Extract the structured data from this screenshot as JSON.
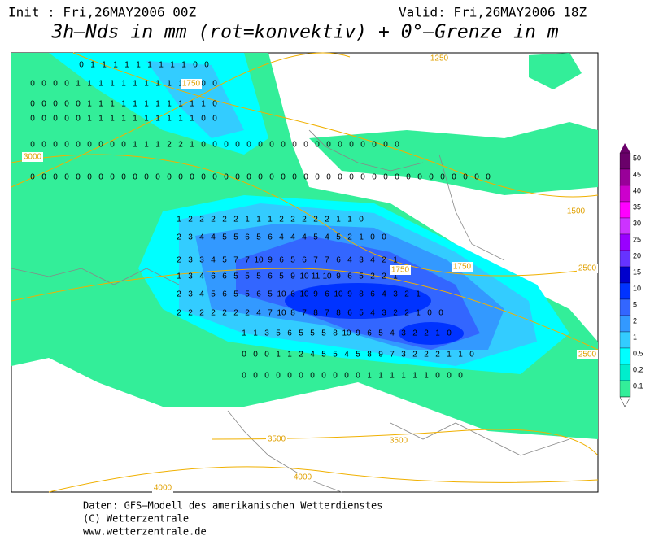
{
  "header": {
    "init": "Init : Fri,26MAY2006 00Z",
    "valid": "Valid: Fri,26MAY2006 18Z",
    "title": "3h–Nds in mm (rot=konvektiv) + 0°–Grenze in m"
  },
  "legend": {
    "labels": [
      "50",
      "45",
      "40",
      "35",
      "30",
      "25",
      "20",
      "15",
      "10",
      "5",
      "2",
      "1",
      "0.5",
      "0.2",
      "0.1"
    ],
    "colors": [
      "#6a006a",
      "#990099",
      "#cc00cc",
      "#ff00ff",
      "#cc33ff",
      "#9900ff",
      "#6633ff",
      "#0000cc",
      "#0033ff",
      "#3366ff",
      "#3399ff",
      "#33ccff",
      "#00ffff",
      "#00eecc",
      "#33ee99"
    ]
  },
  "contour_labels": [
    "1250",
    "1750",
    "3000",
    "1500",
    "1750",
    "2500",
    "1750",
    "2500",
    "3500",
    "3500",
    "4000",
    "4000"
  ],
  "grid_rows": [
    [
      0,
      1,
      1,
      1,
      1,
      1,
      1,
      1,
      1,
      1,
      0,
      0
    ],
    [
      0,
      0,
      0,
      0,
      1,
      1,
      1,
      1,
      1,
      1,
      1,
      1,
      1,
      1,
      1,
      0,
      0
    ],
    [
      0,
      0,
      0,
      0,
      0,
      1,
      1,
      1,
      1,
      1,
      1,
      1,
      1,
      1,
      1,
      1,
      0
    ],
    [
      0,
      0,
      0,
      0,
      0,
      1,
      1,
      1,
      1,
      1,
      1,
      1,
      1,
      1,
      1,
      0,
      0
    ],
    [
      0,
      0,
      0,
      0,
      0,
      0,
      0,
      0,
      0,
      1,
      1,
      1,
      2,
      2,
      1,
      0,
      0,
      0,
      0,
      0,
      0,
      0,
      0,
      0,
      0,
      0,
      0,
      0,
      0,
      0,
      0,
      0,
      0
    ],
    [
      0,
      0,
      0,
      0,
      0,
      0,
      0,
      0,
      0,
      0,
      0,
      0,
      0,
      0,
      0,
      0,
      0,
      0,
      0,
      0,
      0,
      0,
      0,
      0,
      0,
      0,
      0,
      0,
      0,
      0,
      0,
      0,
      0,
      0,
      0,
      0,
      0,
      0,
      0,
      0,
      0
    ],
    [
      1,
      2,
      2,
      2,
      2,
      2,
      1,
      1,
      1,
      2,
      2,
      2,
      2,
      2,
      1,
      1,
      0
    ],
    [
      2,
      3,
      4,
      4,
      5,
      5,
      6,
      5,
      6,
      4,
      4,
      4,
      5,
      4,
      5,
      2,
      1,
      0,
      0
    ],
    [
      2,
      3,
      3,
      4,
      5,
      7,
      7,
      10,
      9,
      6,
      5,
      6,
      7,
      7,
      6,
      4,
      3,
      4,
      2,
      1
    ],
    [
      1,
      3,
      4,
      6,
      6,
      5,
      5,
      5,
      6,
      5,
      9,
      10,
      11,
      10,
      9,
      6,
      5,
      2,
      2,
      1
    ],
    [
      2,
      3,
      4,
      5,
      6,
      5,
      5,
      6,
      5,
      10,
      6,
      10,
      9,
      6,
      10,
      9,
      8,
      6,
      4,
      3,
      2,
      1
    ],
    [
      2,
      2,
      2,
      2,
      2,
      2,
      2,
      4,
      7,
      10,
      8,
      7,
      8,
      7,
      8,
      6,
      5,
      4,
      3,
      2,
      2,
      1,
      0,
      0
    ],
    [
      1,
      1,
      3,
      5,
      6,
      5,
      5,
      5,
      8,
      10,
      9,
      6,
      5,
      4,
      3,
      2,
      2,
      1,
      0
    ],
    [
      0,
      0,
      0,
      1,
      1,
      2,
      4,
      5,
      5,
      4,
      5,
      8,
      9,
      7,
      3,
      2,
      2,
      2,
      1,
      1,
      0
    ],
    [
      0,
      0,
      0,
      0,
      0,
      0,
      0,
      0,
      0,
      0,
      0,
      1,
      1,
      1,
      1,
      1,
      1,
      0,
      0,
      0
    ]
  ],
  "footer": [
    "Daten: GFS–Modell des amerikanischen Wetterdienstes",
    "(C) Wetterzentrale",
    "www.wetterzentrale.de"
  ]
}
